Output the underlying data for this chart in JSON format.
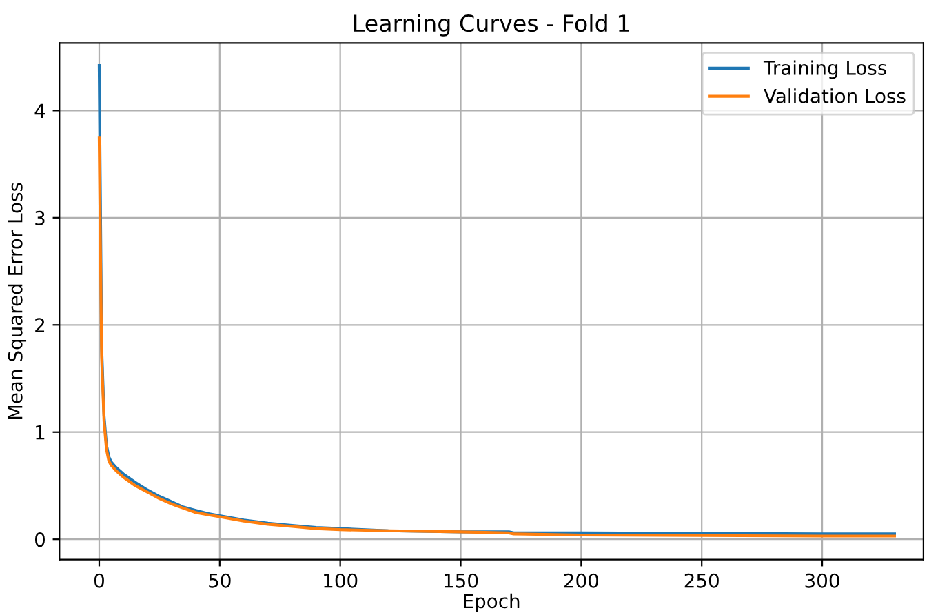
{
  "chart_data": {
    "type": "line",
    "title": "Learning Curves - Fold 1",
    "xlabel": "Epoch",
    "ylabel": "Mean Squared Error Loss",
    "xlim": [
      -16.5,
      342
    ],
    "ylim": [
      -0.19,
      4.63
    ],
    "xticks": [
      0,
      50,
      100,
      150,
      200,
      250,
      300
    ],
    "yticks": [
      0,
      1,
      2,
      3,
      4
    ],
    "grid": true,
    "legend": "top right",
    "series": [
      {
        "name": "Training Loss",
        "color": "#1f77b4",
        "x": [
          0,
          1,
          2,
          3,
          4,
          5,
          7,
          10,
          15,
          20,
          25,
          30,
          35,
          40,
          45,
          50,
          60,
          70,
          80,
          90,
          100,
          120,
          150,
          170,
          172,
          200,
          250,
          300,
          330
        ],
        "values": [
          4.42,
          1.8,
          1.15,
          0.88,
          0.77,
          0.72,
          0.67,
          0.61,
          0.53,
          0.46,
          0.4,
          0.35,
          0.3,
          0.27,
          0.24,
          0.22,
          0.18,
          0.15,
          0.13,
          0.11,
          0.1,
          0.08,
          0.07,
          0.07,
          0.06,
          0.06,
          0.055,
          0.05,
          0.05
        ]
      },
      {
        "name": "Validation Loss",
        "color": "#ff7f0e",
        "x": [
          0,
          1,
          2,
          3,
          4,
          5,
          7,
          10,
          15,
          20,
          25,
          30,
          35,
          40,
          45,
          50,
          60,
          70,
          80,
          90,
          100,
          120,
          150,
          170,
          172,
          200,
          250,
          300,
          330
        ],
        "values": [
          3.75,
          1.7,
          1.1,
          0.84,
          0.73,
          0.69,
          0.64,
          0.58,
          0.5,
          0.44,
          0.38,
          0.33,
          0.29,
          0.25,
          0.23,
          0.21,
          0.17,
          0.14,
          0.12,
          0.1,
          0.09,
          0.08,
          0.07,
          0.06,
          0.05,
          0.04,
          0.035,
          0.03,
          0.03
        ]
      }
    ]
  }
}
